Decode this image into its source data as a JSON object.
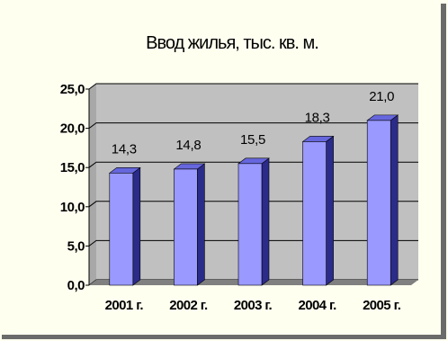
{
  "chart_data": {
    "type": "bar",
    "title": "Ввод жилья, тыс. кв. м.",
    "xlabel": "",
    "ylabel": "",
    "categories": [
      "2001 г.",
      "2002 г.",
      "2003 г.",
      "2004 г.",
      "2005 г."
    ],
    "values": [
      14.3,
      14.8,
      15.5,
      18.3,
      21.0
    ],
    "data_labels": [
      "14,3",
      "14,8",
      "15,5",
      "18,3",
      "21,0"
    ],
    "ylim": [
      0,
      25
    ],
    "yticks": [
      0,
      5,
      10,
      15,
      20,
      25
    ],
    "ytick_labels": [
      "0,0",
      "5,0",
      "10,0",
      "15,0",
      "20,0",
      "25,0"
    ],
    "grid": true,
    "legend": "none",
    "bar_front_color": "#9999ff",
    "bar_top_color": "#6666dd",
    "bar_side_color": "#2b2b8a",
    "wall_color": "#c0c0c0",
    "floor_color": "#808080",
    "background_color": "#fffff0"
  }
}
